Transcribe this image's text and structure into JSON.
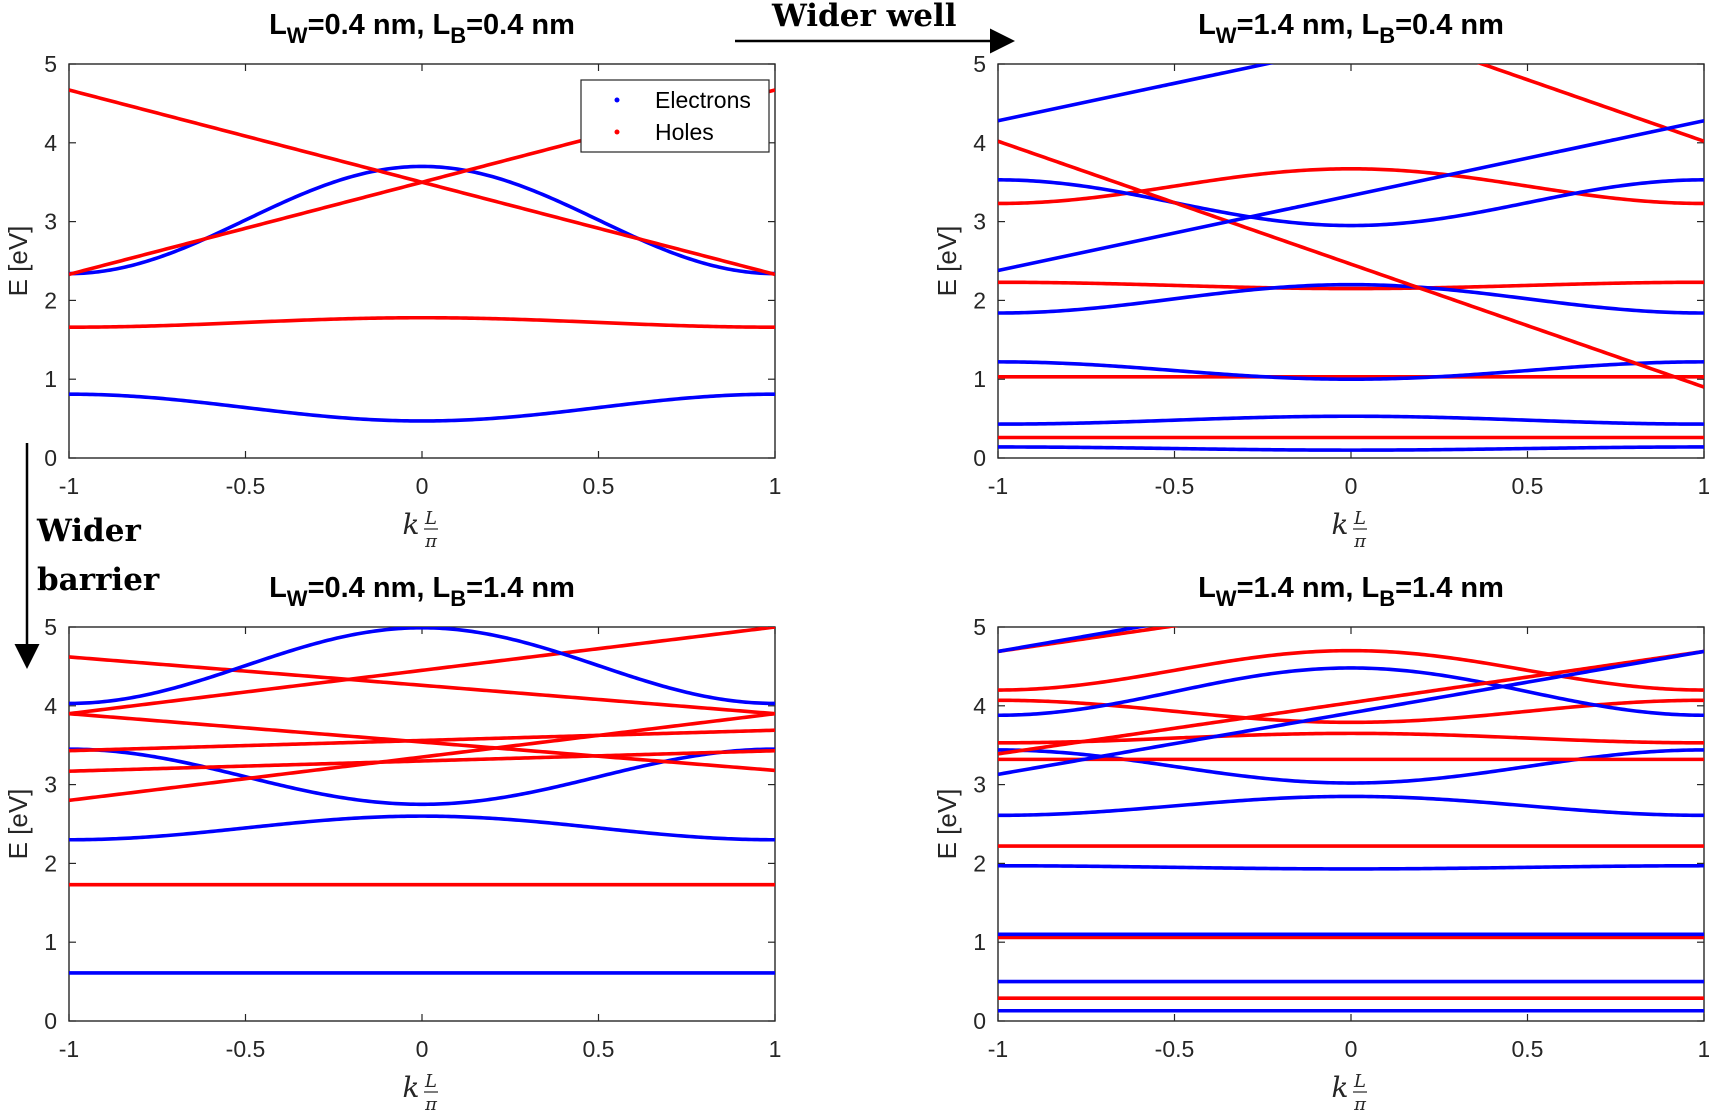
{
  "colors": {
    "electrons": "#0000ff",
    "holes": "#ff0000",
    "axis": "#262626"
  },
  "annotations": {
    "wider_well": "Wider well",
    "wider_barrier_1": "Wider",
    "wider_barrier_2": "barrier"
  },
  "legend": {
    "electrons": "Electrons",
    "holes": "Holes",
    "location": "top-right of first panel"
  },
  "chart_data": [
    {
      "type": "line",
      "title": {
        "L": "L",
        "sub_w": "W",
        "p1": "=0.4 nm, ",
        "L2": "L",
        "sub_b": "B",
        "p2": "=0.4 nm"
      },
      "ylabel": "E [eV]",
      "xlabel": {
        "k": "k",
        "num": "L",
        "den": "π"
      },
      "xlim": [
        -1,
        1
      ],
      "ylim": [
        0,
        5
      ],
      "xticks": [
        "-1",
        "-0.5",
        "0",
        "0.5",
        "1"
      ],
      "yticks": [
        "0",
        "1",
        "2",
        "3",
        "4",
        "5"
      ],
      "series": [
        {
          "name": "Electrons",
          "a": 0.64,
          "b": 0.17
        },
        {
          "name": "Holes",
          "a": 1.72,
          "b": -0.06
        },
        {
          "name": "Electrons",
          "a": 3.02,
          "b": -0.68
        },
        {
          "name": "Holes",
          "a": 3.5,
          "k0": 0,
          "s": 1.17,
          "sign": 1
        },
        {
          "name": "Holes",
          "a": 3.5,
          "k0": 0,
          "s": 1.17,
          "sign": -1
        }
      ]
    },
    {
      "type": "line",
      "title": {
        "L": "L",
        "sub_w": "W",
        "p1": "=1.4 nm, ",
        "L2": "L",
        "sub_b": "B",
        "p2": "=0.4 nm"
      },
      "ylabel": "E [eV]",
      "xlabel": {
        "k": "k",
        "num": "L",
        "den": "π"
      },
      "xlim": [
        -1,
        1
      ],
      "ylim": [
        0,
        5
      ],
      "xticks": [
        "-1",
        "-0.5",
        "0",
        "0.5",
        "1"
      ],
      "yticks": [
        "0",
        "1",
        "2",
        "3",
        "4",
        "5"
      ],
      "series": [
        {
          "name": "Electrons",
          "a": 0.12,
          "b": 0.02
        },
        {
          "name": "Holes",
          "a": 0.26,
          "b": 0
        },
        {
          "name": "Electrons",
          "a": 0.48,
          "b": -0.05
        },
        {
          "name": "Holes",
          "a": 1.03,
          "b": 0
        },
        {
          "name": "Electrons",
          "a": 1.11,
          "b": 0.11
        },
        {
          "name": "Holes",
          "a": 2.19,
          "b": 0.04
        },
        {
          "name": "Electrons",
          "a": 2.02,
          "b": -0.18
        },
        {
          "name": "Holes",
          "a": 3.45,
          "b": -0.22
        },
        {
          "name": "Electrons",
          "a": 3.24,
          "b": 0.29
        },
        {
          "name": "Holes",
          "a": 4.02,
          "k0": -1,
          "s": 1.56,
          "sign": -1
        },
        {
          "name": "Holes",
          "a": 4.02,
          "k0": 1,
          "s": 1.56,
          "sign": 1
        },
        {
          "name": "Electrons",
          "a": 4.28,
          "k0": -1,
          "s": 0.95,
          "sign": 1
        },
        {
          "name": "Electrons",
          "a": 4.28,
          "k0": 1,
          "s": 0.95,
          "sign": -1
        }
      ]
    },
    {
      "type": "line",
      "title": {
        "L": "L",
        "sub_w": "W",
        "p1": "=0.4 nm, ",
        "L2": "L",
        "sub_b": "B",
        "p2": "=1.4 nm"
      },
      "ylabel": "E [eV]",
      "xlabel": {
        "k": "k",
        "num": "L",
        "den": "π"
      },
      "xlim": [
        -1,
        1
      ],
      "ylim": [
        0,
        5
      ],
      "xticks": [
        "-1",
        "-0.5",
        "0",
        "0.5",
        "1"
      ],
      "yticks": [
        "0",
        "1",
        "2",
        "3",
        "4",
        "5"
      ],
      "series": [
        {
          "name": "Electrons",
          "a": 0.61,
          "b": 0
        },
        {
          "name": "Holes",
          "a": 1.73,
          "b": 0
        },
        {
          "name": "Electrons",
          "a": 2.45,
          "b": -0.15
        },
        {
          "name": "Electrons",
          "a": 3.1,
          "b": 0.35
        },
        {
          "name": "Holes",
          "a": 3.43,
          "k0": -1,
          "s": 0.13,
          "sign": 1
        },
        {
          "name": "Holes",
          "a": 3.43,
          "k0": 1,
          "s": 0.13,
          "sign": -1
        },
        {
          "name": "Holes",
          "a": 3.9,
          "k0": -1,
          "s": 0.36,
          "sign": -1
        },
        {
          "name": "Holes",
          "a": 3.9,
          "k0": 1,
          "s": 0.36,
          "sign": 1
        },
        {
          "name": "Holes",
          "a": 3.9,
          "k0": -1,
          "s": 0.55,
          "sign": 1
        },
        {
          "name": "Holes",
          "a": 3.9,
          "k0": 1,
          "s": 0.55,
          "sign": -1
        },
        {
          "name": "Electrons",
          "a": 4.51,
          "b": -0.48
        }
      ]
    },
    {
      "type": "line",
      "title": {
        "L": "L",
        "sub_w": "W",
        "p1": "=1.4 nm, ",
        "L2": "L",
        "sub_b": "B",
        "p2": "=1.4 nm"
      },
      "ylabel": "E [eV]",
      "xlabel": {
        "k": "k",
        "num": "L",
        "den": "π"
      },
      "xlim": [
        -1,
        1
      ],
      "ylim": [
        0,
        5
      ],
      "xticks": [
        "-1",
        "-0.5",
        "0",
        "0.5",
        "1"
      ],
      "yticks": [
        "0",
        "1",
        "2",
        "3",
        "4",
        "5"
      ],
      "series": [
        {
          "name": "Electrons",
          "a": 0.13,
          "b": 0
        },
        {
          "name": "Holes",
          "a": 0.29,
          "b": 0
        },
        {
          "name": "Electrons",
          "a": 0.5,
          "b": 0
        },
        {
          "name": "Holes",
          "a": 1.06,
          "b": 0
        },
        {
          "name": "Electrons",
          "a": 1.1,
          "b": 0
        },
        {
          "name": "Electrons",
          "a": 1.95,
          "b": 0.02
        },
        {
          "name": "Holes",
          "a": 2.22,
          "b": 0
        },
        {
          "name": "Electrons",
          "a": 2.73,
          "b": -0.12
        },
        {
          "name": "Electrons",
          "a": 3.23,
          "b": 0.21
        },
        {
          "name": "Holes",
          "a": 3.32,
          "b": 0
        },
        {
          "name": "Holes",
          "a": 3.59,
          "b": -0.06
        },
        {
          "name": "Holes",
          "a": 3.93,
          "b": 0.14
        },
        {
          "name": "Electrons",
          "a": 4.18,
          "b": -0.3
        },
        {
          "name": "Holes",
          "a": 4.45,
          "b": -0.25
        },
        {
          "name": "Holes",
          "a": 4.69,
          "k0": -1,
          "s": 0.65,
          "sign": 1
        },
        {
          "name": "Holes",
          "a": 4.69,
          "k0": 1,
          "s": 0.65,
          "sign": -1
        },
        {
          "name": "Electrons",
          "a": 4.69,
          "k0": -1,
          "s": 0.78,
          "sign": 1
        },
        {
          "name": "Electrons",
          "a": 4.69,
          "k0": 1,
          "s": 0.78,
          "sign": -1
        }
      ]
    }
  ]
}
